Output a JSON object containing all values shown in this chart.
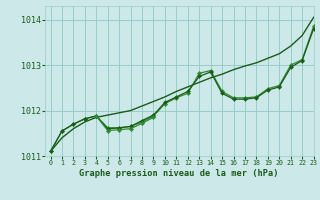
{
  "background_color": "#cce8e8",
  "plot_bg_color": "#cce8e8",
  "grid_color": "#99cccc",
  "line_dark": "#1a5c1a",
  "line_mid": "#2e8b2e",
  "title": "Graphe pression niveau de la mer (hPa)",
  "ylim": [
    1011.0,
    1014.3
  ],
  "xlim": [
    -0.5,
    23
  ],
  "yticks": [
    1011,
    1012,
    1013,
    1014
  ],
  "xticks": [
    0,
    1,
    2,
    3,
    4,
    5,
    6,
    7,
    8,
    9,
    10,
    11,
    12,
    13,
    14,
    15,
    16,
    17,
    18,
    19,
    20,
    21,
    22,
    23
  ],
  "s1_x": [
    0,
    1,
    2,
    3,
    4,
    5,
    6,
    7,
    8,
    9,
    10,
    11,
    12,
    13,
    14,
    15,
    16,
    17,
    18,
    19,
    20,
    21,
    22,
    23
  ],
  "s1_y": [
    1011.1,
    1011.4,
    1011.6,
    1011.75,
    1011.85,
    1011.9,
    1011.95,
    1012.0,
    1012.1,
    1012.2,
    1012.3,
    1012.42,
    1012.52,
    1012.62,
    1012.72,
    1012.8,
    1012.9,
    1012.98,
    1013.05,
    1013.15,
    1013.25,
    1013.42,
    1013.65,
    1014.05
  ],
  "s2_x": [
    0,
    1,
    2,
    3,
    4,
    5,
    6,
    7,
    8,
    9,
    10,
    11,
    12,
    13,
    14,
    15,
    16,
    17,
    18,
    19,
    20,
    21,
    22,
    23
  ],
  "s2_y": [
    1011.1,
    1011.55,
    1011.7,
    1011.82,
    1011.88,
    1011.62,
    1011.62,
    1011.65,
    1011.75,
    1011.88,
    1012.15,
    1012.28,
    1012.38,
    1012.82,
    1012.88,
    1012.42,
    1012.28,
    1012.28,
    1012.3,
    1012.48,
    1012.55,
    1013.0,
    1013.12,
    1013.85
  ],
  "s3_x": [
    0,
    1,
    2,
    3,
    4,
    5,
    6,
    7,
    8,
    9,
    10,
    11,
    12,
    13,
    14,
    15,
    16,
    17,
    18,
    19,
    20,
    21,
    22,
    23
  ],
  "s3_y": [
    1011.1,
    1011.55,
    1011.7,
    1011.82,
    1011.88,
    1011.6,
    1011.62,
    1011.65,
    1011.78,
    1011.9,
    1012.18,
    1012.3,
    1012.42,
    1012.75,
    1012.85,
    1012.38,
    1012.25,
    1012.25,
    1012.28,
    1012.45,
    1012.52,
    1012.95,
    1013.1,
    1013.8
  ],
  "s4_x": [
    4,
    5,
    6,
    7,
    8,
    9
  ],
  "s4_y": [
    1011.88,
    1011.56,
    1011.58,
    1011.6,
    1011.72,
    1011.85
  ]
}
